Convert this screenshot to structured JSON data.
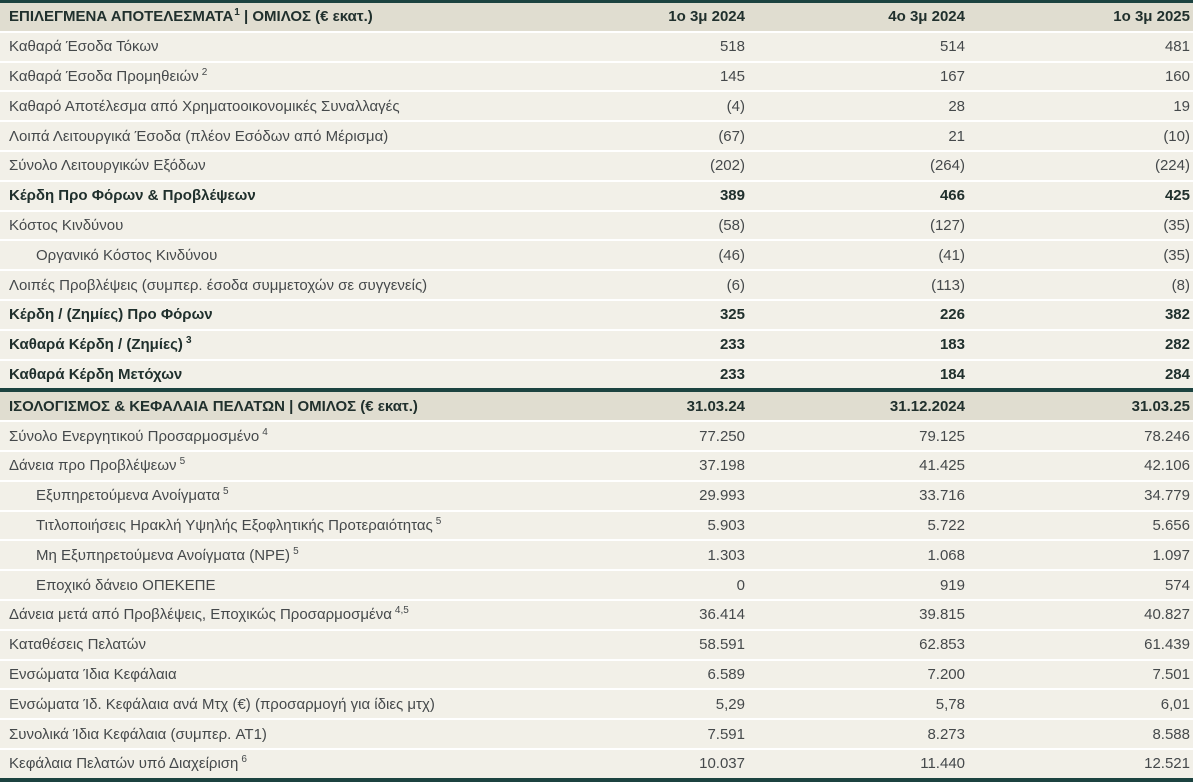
{
  "colors": {
    "border": "#1c4340",
    "header_bg": "#e0ddd0",
    "row_bg": "#f2f0e8",
    "text": "#45494b",
    "bold_text": "#20302d"
  },
  "table": {
    "sections": [
      {
        "title": "ΕΠΙΛΕΓΜΕΝΑ ΑΠΟΤΕΛΕΣΜΑΤΑ",
        "title_sup": "1",
        "title_post": " | ΟΜΙΛΟΣ (€ εκατ.)",
        "columns": [
          "1ο 3μ 2024",
          "4ο 3μ 2024",
          "1ο 3μ 2025"
        ],
        "rows": [
          {
            "label": "Καθαρά Έσοδα Τόκων",
            "sup": "",
            "bold": false,
            "indent": false,
            "values": [
              "518",
              "514",
              "481"
            ]
          },
          {
            "label": "Καθαρά Έσοδα Προμηθειών",
            "sup": "2",
            "bold": false,
            "indent": false,
            "values": [
              "145",
              "167",
              "160"
            ]
          },
          {
            "label": "Καθαρό Αποτέλεσμα από Χρηματοοικονομικές Συναλλαγές",
            "sup": "",
            "bold": false,
            "indent": false,
            "values": [
              "(4)",
              "28",
              "19"
            ]
          },
          {
            "label": "Λοιπά Λειτουργικά Έσοδα (πλέον Εσόδων από Μέρισμα)",
            "sup": "",
            "bold": false,
            "indent": false,
            "values": [
              "(67)",
              "21",
              "(10)"
            ]
          },
          {
            "label": "Σύνολο Λειτουργικών Εξόδων",
            "sup": "",
            "bold": false,
            "indent": false,
            "values": [
              "(202)",
              "(264)",
              "(224)"
            ]
          },
          {
            "label": "Κέρδη Προ Φόρων & Προβλέψεων",
            "sup": "",
            "bold": true,
            "indent": false,
            "values": [
              "389",
              "466",
              "425"
            ]
          },
          {
            "label": "Κόστος Κινδύνου",
            "sup": "",
            "bold": false,
            "indent": false,
            "values": [
              "(58)",
              "(127)",
              "(35)"
            ]
          },
          {
            "label": "Οργανικό Κόστος Κινδύνου",
            "sup": "",
            "bold": false,
            "indent": true,
            "values": [
              "(46)",
              "(41)",
              "(35)"
            ]
          },
          {
            "label": "Λοιπές Προβλέψεις (συμπερ. έσοδα συμμετοχών σε συγγενείς)",
            "sup": "",
            "bold": false,
            "indent": false,
            "values": [
              "(6)",
              "(113)",
              "(8)"
            ]
          },
          {
            "label": "Κέρδη / (Ζημίες) Προ Φόρων",
            "sup": "",
            "bold": true,
            "indent": false,
            "values": [
              "325",
              "226",
              "382"
            ]
          },
          {
            "label": "Καθαρά Κέρδη / (Ζημίες)",
            "sup": "3",
            "bold": true,
            "indent": false,
            "values": [
              "233",
              "183",
              "282"
            ]
          },
          {
            "label": "Καθαρά Κέρδη Μετόχων",
            "sup": "",
            "bold": true,
            "indent": false,
            "values": [
              "233",
              "184",
              "284"
            ]
          }
        ]
      },
      {
        "title": "ΙΣΟΛΟΓΙΣΜΟΣ & ΚΕΦΑΛΑΙΑ ΠΕΛΑΤΩΝ",
        "title_sup": "",
        "title_post": " | ΟΜΙΛΟΣ (€ εκατ.)",
        "columns": [
          "31.03.24",
          "31.12.2024",
          "31.03.25"
        ],
        "rows": [
          {
            "label": "Σύνολο Ενεργητικού Προσαρμοσμένο",
            "sup": "4",
            "bold": false,
            "indent": false,
            "values": [
              "77.250",
              "79.125",
              "78.246"
            ]
          },
          {
            "label": "Δάνεια προ Προβλέψεων",
            "sup": "5",
            "bold": false,
            "indent": false,
            "values": [
              "37.198",
              "41.425",
              "42.106"
            ]
          },
          {
            "label": "Εξυπηρετούμενα Ανοίγματα",
            "sup": "5",
            "bold": false,
            "indent": true,
            "values": [
              "29.993",
              "33.716",
              "34.779"
            ]
          },
          {
            "label": "Τιτλοποιήσεις Ηρακλή Υψηλής Εξοφλητικής Προτεραιότητας",
            "sup": "5",
            "bold": false,
            "indent": true,
            "values": [
              "5.903",
              "5.722",
              "5.656"
            ]
          },
          {
            "label": "Μη Εξυπηρετούμενα Ανοίγματα (NPE)",
            "sup": "5",
            "bold": false,
            "indent": true,
            "values": [
              "1.303",
              "1.068",
              "1.097"
            ]
          },
          {
            "label": "Εποχικό δάνειο ΟΠΕΚΕΠΕ",
            "sup": "",
            "bold": false,
            "indent": true,
            "values": [
              "0",
              "919",
              "574"
            ]
          },
          {
            "label": "Δάνεια μετά από Προβλέψεις, Εποχικώς Προσαρμοσμένα",
            "sup": "4,5",
            "bold": false,
            "indent": false,
            "values": [
              "36.414",
              "39.815",
              "40.827"
            ]
          },
          {
            "label": "Καταθέσεις Πελατών",
            "sup": "",
            "bold": false,
            "indent": false,
            "values": [
              "58.591",
              "62.853",
              "61.439"
            ]
          },
          {
            "label": "Ενσώματα Ίδια Κεφάλαια",
            "sup": "",
            "bold": false,
            "indent": false,
            "values": [
              "6.589",
              "7.200",
              "7.501"
            ]
          },
          {
            "label": "Ενσώματα Ίδ. Κεφάλαια ανά Μτχ (€) (προσαρμογή για ίδιες μτχ)",
            "sup": "",
            "bold": false,
            "indent": false,
            "values": [
              "5,29",
              "5,78",
              "6,01"
            ]
          },
          {
            "label": "Συνολικά Ίδια Κεφάλαια (συμπερ. AT1)",
            "sup": "",
            "bold": false,
            "indent": false,
            "values": [
              "7.591",
              "8.273",
              "8.588"
            ]
          },
          {
            "label": "Κεφάλαια Πελατών υπό Διαχείριση",
            "sup": "6",
            "bold": false,
            "indent": false,
            "values": [
              "10.037",
              "11.440",
              "12.521"
            ]
          }
        ]
      }
    ]
  }
}
